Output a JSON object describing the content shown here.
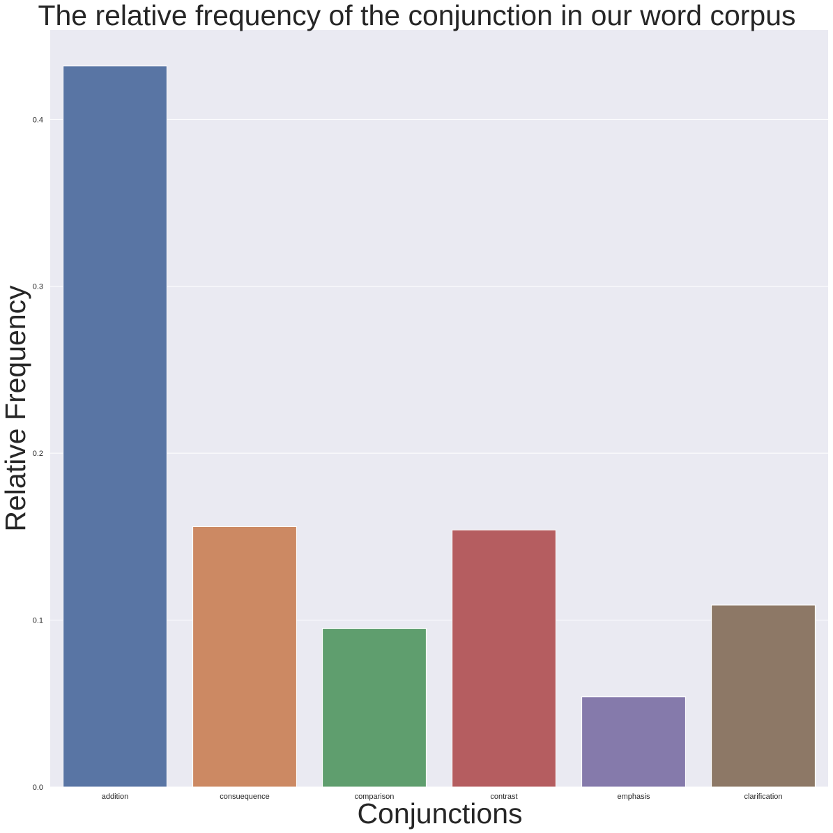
{
  "chart_data": {
    "type": "bar",
    "title": "The relative frequency of the conjunction in our word corpus",
    "xlabel": "Conjunctions",
    "ylabel": "Relative Frequency",
    "categories": [
      "addition",
      "consuequence",
      "comparison",
      "contrast",
      "emphasis",
      "clarification"
    ],
    "values": [
      0.432,
      0.156,
      0.095,
      0.154,
      0.054,
      0.109
    ],
    "colors": [
      "#5975a4",
      "#cc8963",
      "#5f9e6e",
      "#b55d60",
      "#857aab",
      "#8d7866"
    ],
    "ylim": [
      0,
      0.4536
    ],
    "yticks": [
      0.0,
      0.1,
      0.2,
      0.3,
      0.4
    ],
    "ytick_labels": [
      "0.0",
      "0.1",
      "0.2",
      "0.3",
      "0.4"
    ],
    "grid": true,
    "legend": "none",
    "background": "#eaeaf2",
    "grid_color": "#ffffff"
  }
}
